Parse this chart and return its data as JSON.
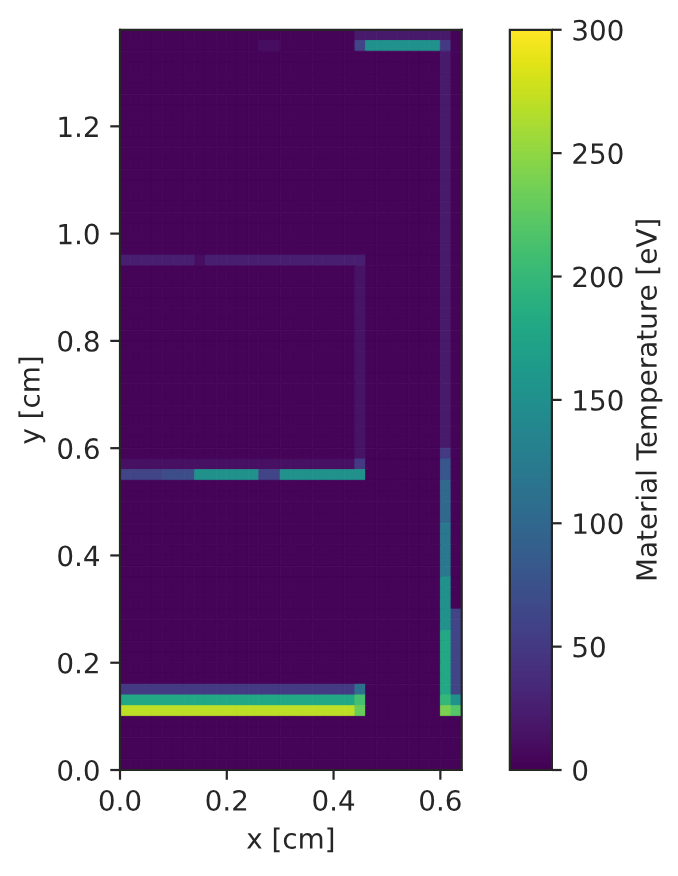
{
  "chart_data": {
    "type": "heatmap",
    "xlabel": "x [cm]",
    "ylabel": "y [cm]",
    "clabel": "Material Temperature [eV]",
    "xlim": [
      0,
      0.64
    ],
    "ylim": [
      0,
      1.38
    ],
    "xticks": [
      {
        "value": 0,
        "label": "0.0"
      },
      {
        "value": 0.2,
        "label": "0.2"
      },
      {
        "value": 0.4,
        "label": "0.4"
      },
      {
        "value": 0.6,
        "label": "0.6"
      }
    ],
    "yticks": [
      {
        "value": 0,
        "label": "0.0"
      },
      {
        "value": 0.2,
        "label": "0.2"
      },
      {
        "value": 0.4,
        "label": "0.4"
      },
      {
        "value": 0.6,
        "label": "0.6"
      },
      {
        "value": 0.8,
        "label": "0.8"
      },
      {
        "value": 1.0,
        "label": "1.0"
      },
      {
        "value": 1.2,
        "label": "1.2"
      }
    ],
    "clim": [
      0,
      300
    ],
    "cticks": [
      0,
      50,
      100,
      150,
      200,
      250,
      300
    ],
    "x": [
      0.01,
      0.03,
      0.05,
      0.07,
      0.09,
      0.11,
      0.13,
      0.15,
      0.17,
      0.19,
      0.21,
      0.23,
      0.25,
      0.27,
      0.29,
      0.31,
      0.33,
      0.35,
      0.37,
      0.39,
      0.41,
      0.43,
      0.45,
      0.47,
      0.49,
      0.51,
      0.53,
      0.55,
      0.57,
      0.59,
      0.61,
      0.63
    ],
    "y": [
      1.37,
      1.35,
      1.33,
      1.31,
      1.29,
      1.27,
      1.25,
      1.23,
      1.21,
      1.19,
      1.17,
      1.15,
      1.13,
      1.11,
      1.09,
      1.07,
      1.05,
      1.03,
      1.01,
      0.99,
      0.97,
      0.95,
      0.93,
      0.91,
      0.89,
      0.87,
      0.85,
      0.83,
      0.81,
      0.79,
      0.77,
      0.75,
      0.73,
      0.71,
      0.69,
      0.67,
      0.65,
      0.63,
      0.61,
      0.59,
      0.57,
      0.55,
      0.53,
      0.51,
      0.49,
      0.47,
      0.45,
      0.43,
      0.41,
      0.39,
      0.37,
      0.35,
      0.33,
      0.31,
      0.29,
      0.27,
      0.25,
      0.23,
      0.21,
      0.19,
      0.17,
      0.15,
      0.13,
      0.11,
      0.09,
      0.07,
      0.05,
      0.03,
      0.01
    ],
    "cells": [
      [
        3,
        3,
        3,
        3,
        3,
        3,
        3,
        3,
        3,
        3,
        3,
        3,
        3,
        3,
        3,
        3,
        3,
        3,
        3,
        3,
        3,
        3,
        20,
        20,
        20,
        20,
        20,
        20,
        20,
        20,
        20,
        3
      ],
      [
        3,
        3,
        3,
        3,
        3,
        3,
        3,
        3,
        3,
        3,
        3,
        3,
        3,
        10,
        10,
        3,
        3,
        3,
        3,
        3,
        3,
        3,
        60,
        150,
        150,
        150,
        150,
        150,
        150,
        150,
        50,
        3
      ],
      [
        3,
        3,
        3,
        3,
        3,
        3,
        3,
        3,
        3,
        3,
        3,
        3,
        3,
        3,
        3,
        3,
        3,
        3,
        3,
        3,
        3,
        3,
        3,
        3,
        3,
        3,
        3,
        3,
        3,
        3,
        20,
        3
      ],
      [
        3,
        3,
        3,
        3,
        3,
        3,
        3,
        3,
        3,
        3,
        3,
        3,
        3,
        3,
        3,
        3,
        3,
        3,
        3,
        3,
        3,
        3,
        3,
        3,
        3,
        3,
        3,
        3,
        3,
        3,
        20,
        3
      ],
      [
        3,
        3,
        3,
        3,
        3,
        3,
        3,
        3,
        3,
        3,
        3,
        3,
        3,
        3,
        3,
        3,
        3,
        3,
        3,
        3,
        3,
        3,
        3,
        3,
        3,
        3,
        3,
        3,
        3,
        3,
        20,
        3
      ],
      [
        3,
        3,
        3,
        3,
        3,
        3,
        3,
        3,
        3,
        3,
        3,
        3,
        3,
        3,
        3,
        3,
        3,
        3,
        3,
        3,
        3,
        3,
        3,
        3,
        3,
        3,
        3,
        3,
        3,
        3,
        20,
        3
      ],
      [
        3,
        3,
        3,
        3,
        3,
        3,
        3,
        3,
        3,
        3,
        3,
        3,
        3,
        3,
        3,
        3,
        3,
        3,
        3,
        3,
        3,
        3,
        3,
        3,
        3,
        3,
        3,
        3,
        3,
        3,
        20,
        3
      ],
      [
        3,
        3,
        3,
        3,
        3,
        3,
        3,
        3,
        3,
        3,
        3,
        3,
        3,
        3,
        3,
        3,
        3,
        3,
        3,
        3,
        3,
        3,
        3,
        3,
        3,
        3,
        3,
        3,
        3,
        3,
        20,
        3
      ],
      [
        3,
        3,
        3,
        3,
        3,
        3,
        3,
        3,
        3,
        3,
        3,
        3,
        3,
        3,
        3,
        3,
        3,
        3,
        3,
        3,
        3,
        3,
        3,
        3,
        3,
        3,
        3,
        3,
        3,
        3,
        20,
        3
      ],
      [
        3,
        3,
        3,
        3,
        3,
        3,
        3,
        3,
        3,
        3,
        3,
        3,
        3,
        3,
        3,
        3,
        3,
        3,
        3,
        3,
        3,
        3,
        3,
        3,
        3,
        3,
        3,
        3,
        3,
        3,
        20,
        3
      ],
      [
        3,
        3,
        3,
        3,
        3,
        3,
        3,
        3,
        3,
        3,
        3,
        3,
        3,
        3,
        3,
        3,
        3,
        3,
        3,
        3,
        3,
        3,
        3,
        3,
        3,
        3,
        3,
        3,
        3,
        3,
        20,
        3
      ],
      [
        3,
        3,
        3,
        3,
        3,
        3,
        3,
        3,
        3,
        3,
        3,
        3,
        3,
        3,
        3,
        3,
        3,
        3,
        3,
        3,
        3,
        3,
        3,
        3,
        3,
        3,
        3,
        3,
        3,
        3,
        20,
        3
      ],
      [
        3,
        3,
        3,
        3,
        3,
        3,
        3,
        3,
        3,
        3,
        3,
        3,
        3,
        3,
        3,
        3,
        3,
        3,
        3,
        3,
        3,
        3,
        3,
        3,
        3,
        3,
        3,
        3,
        3,
        3,
        20,
        3
      ],
      [
        3,
        3,
        3,
        3,
        3,
        3,
        3,
        3,
        3,
        3,
        3,
        3,
        3,
        3,
        3,
        3,
        3,
        3,
        3,
        3,
        3,
        3,
        3,
        3,
        3,
        3,
        3,
        3,
        3,
        3,
        20,
        3
      ],
      [
        3,
        3,
        3,
        3,
        3,
        3,
        3,
        3,
        3,
        3,
        3,
        3,
        3,
        3,
        3,
        3,
        3,
        3,
        3,
        3,
        3,
        3,
        3,
        3,
        3,
        3,
        3,
        3,
        3,
        3,
        20,
        3
      ],
      [
        3,
        3,
        3,
        3,
        3,
        3,
        3,
        3,
        3,
        3,
        3,
        3,
        3,
        3,
        3,
        3,
        3,
        3,
        3,
        3,
        3,
        3,
        3,
        3,
        3,
        3,
        3,
        3,
        3,
        3,
        20,
        3
      ],
      [
        3,
        3,
        3,
        3,
        3,
        3,
        3,
        3,
        3,
        3,
        3,
        3,
        3,
        3,
        3,
        3,
        3,
        3,
        3,
        3,
        3,
        3,
        3,
        3,
        3,
        3,
        3,
        3,
        3,
        3,
        20,
        3
      ],
      [
        3,
        3,
        3,
        3,
        3,
        3,
        3,
        3,
        3,
        3,
        3,
        3,
        3,
        3,
        3,
        3,
        3,
        3,
        3,
        3,
        3,
        3,
        3,
        3,
        3,
        3,
        3,
        3,
        3,
        3,
        20,
        3
      ],
      [
        3,
        3,
        3,
        3,
        3,
        3,
        3,
        3,
        3,
        3,
        3,
        3,
        3,
        3,
        3,
        3,
        3,
        3,
        3,
        3,
        3,
        3,
        3,
        3,
        3,
        3,
        3,
        3,
        3,
        3,
        20,
        3
      ],
      [
        3,
        3,
        3,
        3,
        3,
        3,
        3,
        3,
        3,
        3,
        3,
        3,
        3,
        3,
        3,
        3,
        3,
        3,
        3,
        3,
        3,
        3,
        3,
        3,
        3,
        3,
        3,
        3,
        3,
        3,
        20,
        3
      ],
      [
        3,
        3,
        3,
        3,
        3,
        3,
        3,
        3,
        3,
        3,
        3,
        3,
        3,
        3,
        3,
        3,
        3,
        3,
        3,
        3,
        3,
        3,
        3,
        3,
        3,
        3,
        3,
        3,
        3,
        3,
        20,
        3
      ],
      [
        25,
        25,
        25,
        25,
        25,
        25,
        25,
        10,
        25,
        25,
        25,
        25,
        25,
        25,
        25,
        25,
        25,
        25,
        25,
        25,
        25,
        25,
        25,
        3,
        3,
        3,
        3,
        3,
        3,
        3,
        20,
        3
      ],
      [
        3,
        3,
        3,
        3,
        3,
        3,
        3,
        3,
        3,
        3,
        3,
        3,
        3,
        3,
        3,
        3,
        3,
        3,
        3,
        3,
        3,
        3,
        15,
        3,
        3,
        3,
        3,
        3,
        3,
        3,
        20,
        3
      ],
      [
        3,
        3,
        3,
        3,
        3,
        3,
        3,
        3,
        3,
        3,
        3,
        3,
        3,
        3,
        3,
        3,
        3,
        3,
        3,
        3,
        3,
        3,
        15,
        3,
        3,
        3,
        3,
        3,
        3,
        3,
        20,
        3
      ],
      [
        3,
        3,
        3,
        3,
        3,
        3,
        3,
        3,
        3,
        3,
        3,
        3,
        3,
        3,
        3,
        3,
        3,
        3,
        3,
        3,
        3,
        3,
        15,
        3,
        3,
        3,
        3,
        3,
        3,
        3,
        20,
        3
      ],
      [
        3,
        3,
        3,
        3,
        3,
        3,
        3,
        3,
        3,
        3,
        3,
        3,
        3,
        3,
        3,
        3,
        3,
        3,
        3,
        3,
        3,
        3,
        15,
        3,
        3,
        3,
        3,
        3,
        3,
        3,
        20,
        3
      ],
      [
        3,
        3,
        3,
        3,
        3,
        3,
        3,
        3,
        3,
        3,
        3,
        3,
        3,
        3,
        3,
        3,
        3,
        3,
        3,
        3,
        3,
        3,
        15,
        3,
        3,
        3,
        3,
        3,
        3,
        3,
        20,
        3
      ],
      [
        3,
        3,
        3,
        3,
        3,
        3,
        3,
        3,
        3,
        3,
        3,
        3,
        3,
        3,
        3,
        3,
        3,
        3,
        3,
        3,
        3,
        3,
        15,
        3,
        3,
        3,
        3,
        3,
        3,
        3,
        20,
        3
      ],
      [
        3,
        3,
        3,
        3,
        3,
        3,
        3,
        3,
        3,
        3,
        3,
        3,
        3,
        3,
        3,
        3,
        3,
        3,
        3,
        3,
        3,
        3,
        15,
        3,
        3,
        3,
        3,
        3,
        3,
        3,
        20,
        3
      ],
      [
        3,
        3,
        3,
        3,
        3,
        3,
        3,
        3,
        3,
        3,
        3,
        3,
        3,
        3,
        3,
        3,
        3,
        3,
        3,
        3,
        3,
        3,
        15,
        3,
        3,
        3,
        3,
        3,
        3,
        3,
        20,
        3
      ],
      [
        3,
        3,
        3,
        3,
        3,
        3,
        3,
        3,
        3,
        3,
        3,
        3,
        3,
        3,
        3,
        3,
        3,
        3,
        3,
        3,
        3,
        3,
        15,
        3,
        3,
        3,
        3,
        3,
        3,
        3,
        20,
        3
      ],
      [
        3,
        3,
        3,
        3,
        3,
        3,
        3,
        3,
        3,
        3,
        3,
        3,
        3,
        3,
        3,
        3,
        3,
        3,
        3,
        3,
        3,
        3,
        15,
        3,
        3,
        3,
        3,
        3,
        3,
        3,
        20,
        3
      ],
      [
        3,
        3,
        3,
        3,
        3,
        3,
        3,
        3,
        3,
        3,
        3,
        3,
        3,
        3,
        3,
        3,
        3,
        3,
        3,
        3,
        3,
        3,
        15,
        3,
        3,
        3,
        3,
        3,
        3,
        3,
        20,
        3
      ],
      [
        3,
        3,
        3,
        3,
        3,
        3,
        3,
        3,
        3,
        3,
        3,
        3,
        3,
        3,
        3,
        3,
        3,
        3,
        3,
        3,
        3,
        3,
        15,
        3,
        3,
        3,
        3,
        3,
        3,
        3,
        20,
        3
      ],
      [
        3,
        3,
        3,
        3,
        3,
        3,
        3,
        3,
        3,
        3,
        3,
        3,
        3,
        3,
        3,
        3,
        3,
        3,
        3,
        3,
        3,
        3,
        15,
        3,
        3,
        3,
        3,
        3,
        3,
        3,
        20,
        3
      ],
      [
        3,
        3,
        3,
        3,
        3,
        3,
        3,
        3,
        3,
        3,
        3,
        3,
        3,
        3,
        3,
        3,
        3,
        3,
        3,
        3,
        3,
        3,
        15,
        3,
        3,
        3,
        3,
        3,
        3,
        3,
        20,
        3
      ],
      [
        3,
        3,
        3,
        3,
        3,
        3,
        3,
        3,
        3,
        3,
        3,
        3,
        3,
        3,
        3,
        3,
        3,
        3,
        3,
        3,
        3,
        3,
        15,
        3,
        3,
        3,
        3,
        3,
        3,
        3,
        20,
        3
      ],
      [
        3,
        3,
        3,
        3,
        3,
        3,
        3,
        3,
        3,
        3,
        3,
        3,
        3,
        3,
        3,
        3,
        3,
        3,
        3,
        3,
        3,
        3,
        15,
        3,
        3,
        3,
        3,
        3,
        3,
        3,
        20,
        3
      ],
      [
        3,
        3,
        3,
        3,
        3,
        3,
        3,
        3,
        3,
        3,
        3,
        3,
        3,
        3,
        3,
        3,
        3,
        3,
        3,
        3,
        3,
        3,
        15,
        3,
        3,
        3,
        3,
        3,
        3,
        3,
        20,
        3
      ],
      [
        3,
        3,
        3,
        3,
        3,
        3,
        3,
        3,
        3,
        3,
        3,
        3,
        3,
        3,
        3,
        3,
        3,
        3,
        3,
        3,
        3,
        3,
        15,
        3,
        3,
        3,
        3,
        3,
        3,
        3,
        50,
        3
      ],
      [
        12,
        12,
        12,
        12,
        12,
        12,
        12,
        12,
        12,
        12,
        12,
        12,
        12,
        12,
        12,
        12,
        12,
        12,
        12,
        12,
        12,
        12,
        50,
        3,
        3,
        3,
        3,
        3,
        3,
        3,
        80,
        3
      ],
      [
        60,
        60,
        60,
        60,
        70,
        70,
        70,
        150,
        150,
        150,
        150,
        150,
        150,
        60,
        60,
        150,
        150,
        150,
        150,
        150,
        150,
        150,
        150,
        3,
        3,
        3,
        3,
        3,
        3,
        3,
        80,
        3
      ],
      [
        3,
        3,
        3,
        3,
        3,
        3,
        3,
        3,
        3,
        3,
        3,
        3,
        3,
        3,
        3,
        3,
        3,
        3,
        3,
        3,
        3,
        3,
        3,
        3,
        3,
        3,
        3,
        3,
        3,
        3,
        100,
        3
      ],
      [
        3,
        3,
        3,
        3,
        3,
        3,
        3,
        3,
        3,
        3,
        3,
        3,
        3,
        3,
        3,
        3,
        3,
        3,
        3,
        3,
        3,
        3,
        3,
        3,
        3,
        3,
        3,
        3,
        3,
        3,
        100,
        3
      ],
      [
        3,
        3,
        3,
        3,
        3,
        3,
        3,
        3,
        3,
        3,
        3,
        3,
        3,
        3,
        3,
        3,
        3,
        3,
        3,
        3,
        3,
        3,
        3,
        3,
        3,
        3,
        3,
        3,
        3,
        3,
        100,
        3
      ],
      [
        3,
        3,
        3,
        3,
        3,
        3,
        3,
        3,
        3,
        3,
        3,
        3,
        3,
        3,
        3,
        3,
        3,
        3,
        3,
        3,
        3,
        3,
        3,
        3,
        3,
        3,
        3,
        3,
        3,
        3,
        100,
        3
      ],
      [
        3,
        3,
        3,
        3,
        3,
        3,
        3,
        3,
        3,
        3,
        3,
        3,
        3,
        3,
        3,
        3,
        3,
        3,
        3,
        3,
        3,
        3,
        3,
        3,
        3,
        3,
        3,
        3,
        3,
        3,
        120,
        3
      ],
      [
        3,
        3,
        3,
        3,
        3,
        3,
        3,
        3,
        3,
        3,
        3,
        3,
        3,
        3,
        3,
        3,
        3,
        3,
        3,
        3,
        3,
        3,
        3,
        3,
        3,
        3,
        3,
        3,
        3,
        3,
        120,
        3
      ],
      [
        3,
        3,
        3,
        3,
        3,
        3,
        3,
        3,
        3,
        3,
        3,
        3,
        3,
        3,
        3,
        3,
        3,
        3,
        3,
        3,
        3,
        3,
        3,
        3,
        3,
        3,
        3,
        3,
        3,
        3,
        120,
        3
      ],
      [
        3,
        3,
        3,
        3,
        3,
        3,
        3,
        3,
        3,
        3,
        3,
        3,
        3,
        3,
        3,
        3,
        3,
        3,
        3,
        3,
        3,
        3,
        3,
        3,
        3,
        3,
        3,
        3,
        3,
        3,
        120,
        3
      ],
      [
        3,
        3,
        3,
        3,
        3,
        3,
        3,
        3,
        3,
        3,
        3,
        3,
        3,
        3,
        3,
        3,
        3,
        3,
        3,
        3,
        3,
        3,
        3,
        3,
        3,
        3,
        3,
        3,
        3,
        3,
        120,
        3
      ],
      [
        3,
        3,
        3,
        3,
        3,
        3,
        3,
        3,
        3,
        3,
        3,
        3,
        3,
        3,
        3,
        3,
        3,
        3,
        3,
        3,
        3,
        3,
        3,
        3,
        3,
        3,
        3,
        3,
        3,
        3,
        150,
        3
      ],
      [
        3,
        3,
        3,
        3,
        3,
        3,
        3,
        3,
        3,
        3,
        3,
        3,
        3,
        3,
        3,
        3,
        3,
        3,
        3,
        3,
        3,
        3,
        3,
        3,
        3,
        3,
        3,
        3,
        3,
        3,
        150,
        3
      ],
      [
        3,
        3,
        3,
        3,
        3,
        3,
        3,
        3,
        3,
        3,
        3,
        3,
        3,
        3,
        3,
        3,
        3,
        3,
        3,
        3,
        3,
        3,
        3,
        3,
        3,
        3,
        3,
        3,
        3,
        3,
        150,
        3
      ],
      [
        3,
        3,
        3,
        3,
        3,
        3,
        3,
        3,
        3,
        3,
        3,
        3,
        3,
        3,
        3,
        3,
        3,
        3,
        3,
        3,
        3,
        3,
        3,
        3,
        3,
        3,
        3,
        3,
        3,
        3,
        150,
        60
      ],
      [
        3,
        3,
        3,
        3,
        3,
        3,
        3,
        3,
        3,
        3,
        3,
        3,
        3,
        3,
        3,
        3,
        3,
        3,
        3,
        3,
        3,
        3,
        3,
        3,
        3,
        3,
        3,
        3,
        3,
        3,
        150,
        60
      ],
      [
        3,
        3,
        3,
        3,
        3,
        3,
        3,
        3,
        3,
        3,
        3,
        3,
        3,
        3,
        3,
        3,
        3,
        3,
        3,
        3,
        3,
        3,
        3,
        3,
        3,
        3,
        3,
        3,
        3,
        3,
        180,
        60
      ],
      [
        3,
        3,
        3,
        3,
        3,
        3,
        3,
        3,
        3,
        3,
        3,
        3,
        3,
        3,
        3,
        3,
        3,
        3,
        3,
        3,
        3,
        3,
        3,
        3,
        3,
        3,
        3,
        3,
        3,
        3,
        180,
        60
      ],
      [
        3,
        3,
        3,
        3,
        3,
        3,
        3,
        3,
        3,
        3,
        3,
        3,
        3,
        3,
        3,
        3,
        3,
        3,
        3,
        3,
        3,
        3,
        3,
        3,
        3,
        3,
        3,
        3,
        3,
        3,
        180,
        60
      ],
      [
        3,
        3,
        3,
        3,
        3,
        3,
        3,
        3,
        3,
        3,
        3,
        3,
        3,
        3,
        3,
        3,
        3,
        3,
        3,
        3,
        3,
        3,
        3,
        3,
        3,
        3,
        3,
        3,
        3,
        3,
        180,
        60
      ],
      [
        3,
        3,
        3,
        3,
        3,
        3,
        3,
        3,
        3,
        3,
        3,
        3,
        3,
        3,
        3,
        3,
        3,
        3,
        3,
        3,
        3,
        3,
        3,
        3,
        3,
        3,
        3,
        3,
        3,
        3,
        180,
        60
      ],
      [
        50,
        50,
        50,
        50,
        50,
        50,
        50,
        50,
        50,
        50,
        50,
        50,
        50,
        50,
        50,
        50,
        50,
        50,
        50,
        50,
        50,
        50,
        110,
        3,
        3,
        3,
        3,
        3,
        3,
        3,
        180,
        60
      ],
      [
        180,
        180,
        180,
        180,
        180,
        180,
        180,
        180,
        180,
        180,
        180,
        180,
        180,
        180,
        180,
        180,
        180,
        180,
        180,
        180,
        180,
        180,
        210,
        3,
        3,
        3,
        3,
        3,
        3,
        3,
        200,
        150
      ],
      [
        270,
        270,
        270,
        270,
        270,
        270,
        270,
        270,
        270,
        270,
        270,
        270,
        270,
        270,
        270,
        270,
        270,
        270,
        270,
        270,
        270,
        270,
        230,
        3,
        3,
        3,
        3,
        3,
        3,
        3,
        240,
        220
      ],
      [
        3,
        3,
        3,
        3,
        3,
        3,
        3,
        3,
        3,
        3,
        3,
        3,
        3,
        3,
        3,
        3,
        3,
        3,
        3,
        3,
        3,
        3,
        3,
        3,
        3,
        3,
        3,
        3,
        3,
        3,
        3,
        3
      ],
      [
        3,
        3,
        3,
        3,
        3,
        3,
        3,
        3,
        3,
        3,
        3,
        3,
        3,
        3,
        3,
        3,
        3,
        3,
        3,
        3,
        3,
        3,
        3,
        3,
        3,
        3,
        3,
        3,
        3,
        3,
        3,
        3
      ],
      [
        3,
        3,
        3,
        3,
        3,
        3,
        3,
        3,
        3,
        3,
        3,
        3,
        3,
        3,
        3,
        3,
        3,
        3,
        3,
        3,
        3,
        3,
        3,
        3,
        3,
        3,
        3,
        3,
        3,
        3,
        3,
        3
      ],
      [
        3,
        3,
        3,
        3,
        3,
        3,
        3,
        3,
        3,
        3,
        3,
        3,
        3,
        3,
        3,
        3,
        3,
        3,
        3,
        3,
        3,
        3,
        3,
        3,
        3,
        3,
        3,
        3,
        3,
        3,
        3,
        3
      ],
      [
        3,
        3,
        3,
        3,
        3,
        3,
        3,
        3,
        3,
        3,
        3,
        3,
        3,
        3,
        3,
        3,
        3,
        3,
        3,
        3,
        3,
        3,
        3,
        3,
        3,
        3,
        3,
        3,
        3,
        3,
        3,
        3
      ]
    ]
  }
}
